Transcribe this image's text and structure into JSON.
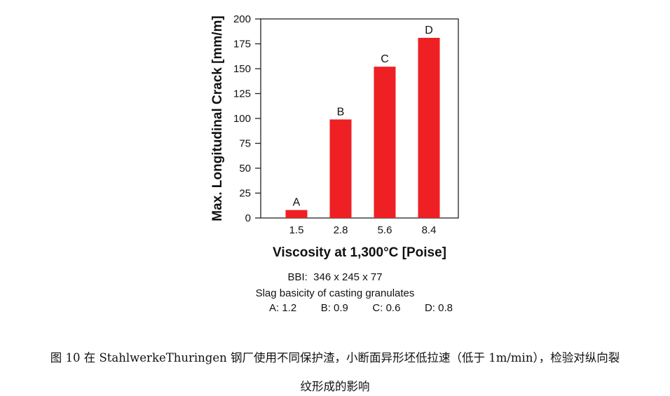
{
  "chart_data": {
    "type": "bar",
    "categories": [
      "1.5",
      "2.8",
      "5.6",
      "8.4"
    ],
    "bar_labels": [
      "A",
      "B",
      "C",
      "D"
    ],
    "values": [
      8,
      99,
      152,
      181
    ],
    "xlabel": "Viscosity at 1,300°C [Poise]",
    "ylabel": "Max. Longitudinal Crack [mm/m]",
    "ylim": [
      0,
      200
    ],
    "yticks": [
      0,
      25,
      50,
      75,
      100,
      125,
      150,
      175,
      200
    ],
    "grid": false,
    "bar_color": "#ee2024"
  },
  "notes": {
    "bbi": "BBI:  346 x 245 x 77",
    "basicity_title": "Slag basicity of casting granulates",
    "basicity": [
      "A: 1.2",
      "B: 0.9",
      "C: 0.6",
      "D: 0.8"
    ]
  },
  "caption": {
    "line1": "图 10  在 StahlwerkeThuringen 钢厂使用不同保护渣，小断面异形坯低拉速（低于 1m/min），检验对纵向裂",
    "line2": "纹形成的影响"
  }
}
